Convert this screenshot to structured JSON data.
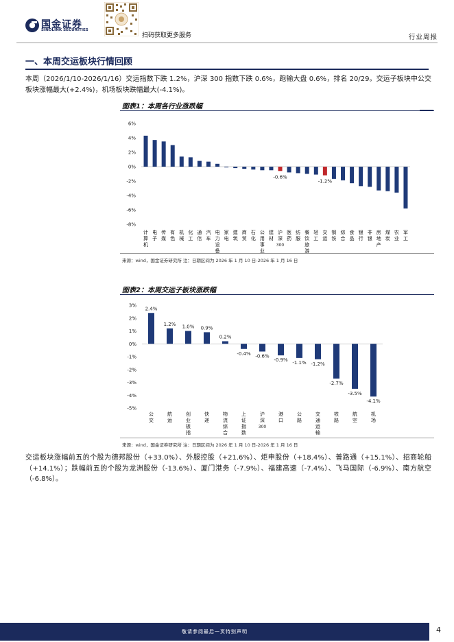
{
  "header": {
    "logo_cn": "国金证券",
    "logo_en": "SINOLINK SECURITIES",
    "qr_caption": "扫码获取更多服务",
    "doc_type": "行业周报"
  },
  "section": {
    "title": "一、本周交运板块行情回顾"
  },
  "intro": "本周（2026/1/10-2026/1/16）交运指数下跌 1.2%，沪深 300 指数下跌 0.6%，跑输大盘 0.6%，排名 20/29。交运子板块中公交板块涨幅最大(+2.4%)，机场板块跌幅最大(-4.1%)。",
  "figures": {
    "fig1_title": "图表1：本周各行业涨跌幅",
    "fig1_note": "来源：wind，国金证券研究所    注：日期区间为 2026 年 1 月 10 日-2026 年 1 月 16 日",
    "fig2_title": "图表2：本周交运子板块涨跌幅",
    "fig2_note": "来源：wind，国金证券研究所    注：日期区间为 2026 年 1 月 10 日-2026 年 1 月 16 日"
  },
  "summary": "交运板块涨幅前五的个股为德邦股份（+33.0%）、外服控股（+21.6%）、炬申股份（+18.4%）、普路通（+15.1%）、招商轮船（+14.1%）；跌幅前五的个股为龙洲股份（-13.6%）、厦门港务（-7.9%）、福建高速（-7.4%）、飞马国际（-6.9%）、南方航空（-6.8%）。",
  "footer": {
    "disclaimer": "敬请参阅最后一页特别声明",
    "page": "4"
  },
  "colors": {
    "navy": "#1b2a5c",
    "bar": "#1f3a78",
    "highlight": "#c0282b"
  },
  "chart_data": [
    {
      "type": "bar",
      "title": "图表1：本周各行业涨跌幅",
      "categories": [
        "计算机",
        "电子",
        "传媒",
        "有色",
        "机械",
        "化工",
        "通信",
        "汽车",
        "电力设备",
        "家电",
        "建筑",
        "商贸",
        "石化",
        "公用事业",
        "建材",
        "沪深300",
        "医药",
        "纺服",
        "餐饮旅游",
        "轻工",
        "交运",
        "钢铁",
        "综合",
        "食品",
        "银行",
        "非银",
        "房地产",
        "煤炭",
        "农业",
        "军工"
      ],
      "values": [
        4.3,
        3.7,
        3.5,
        3.0,
        1.4,
        1.3,
        0.8,
        0.7,
        0.4,
        -0.1,
        -0.2,
        -0.3,
        -0.4,
        -0.5,
        -0.5,
        -0.6,
        -0.8,
        -0.9,
        -1.0,
        -1.1,
        -1.2,
        -1.7,
        -1.9,
        -2.3,
        -2.7,
        -2.8,
        -3.3,
        -3.4,
        -3.6,
        -5.8
      ],
      "highlight": [
        "沪深300",
        "交运"
      ],
      "data_labels": [
        {
          "category": "沪深300",
          "text": "-0.6%"
        },
        {
          "category": "交运",
          "text": "-1.2%"
        }
      ],
      "yticks": [
        "6%",
        "4%",
        "2%",
        "0%",
        "-2%",
        "-4%",
        "-6%",
        "-8%"
      ],
      "ylim": [
        -8,
        6
      ],
      "ylabel": "",
      "xlabel": ""
    },
    {
      "type": "bar",
      "title": "图表2：本周交运子板块涨跌幅",
      "categories": [
        "公交",
        "航运",
        "创业板指",
        "快递",
        "物流综合",
        "上证指数",
        "沪深300",
        "港口",
        "公路",
        "交通运输",
        "铁路",
        "航空",
        "机场"
      ],
      "values": [
        2.4,
        1.2,
        1.0,
        0.9,
        0.2,
        -0.4,
        -0.6,
        -0.9,
        -1.1,
        -1.2,
        -2.7,
        -3.5,
        -4.1
      ],
      "labels": [
        "2.4%",
        "1.2%",
        "1.0%",
        "0.9%",
        "0.2%",
        "-0.4%",
        "-0.6%",
        "-0.9%",
        "-1.1%",
        "-1.2%",
        "-2.7%",
        "-3.5%",
        "-4.1%"
      ],
      "yticks": [
        "3%",
        "2%",
        "1%",
        "0%",
        "-1%",
        "-2%",
        "-3%",
        "-4%",
        "-5%"
      ],
      "ylim": [
        -5,
        3
      ],
      "ylabel": "",
      "xlabel": ""
    }
  ]
}
